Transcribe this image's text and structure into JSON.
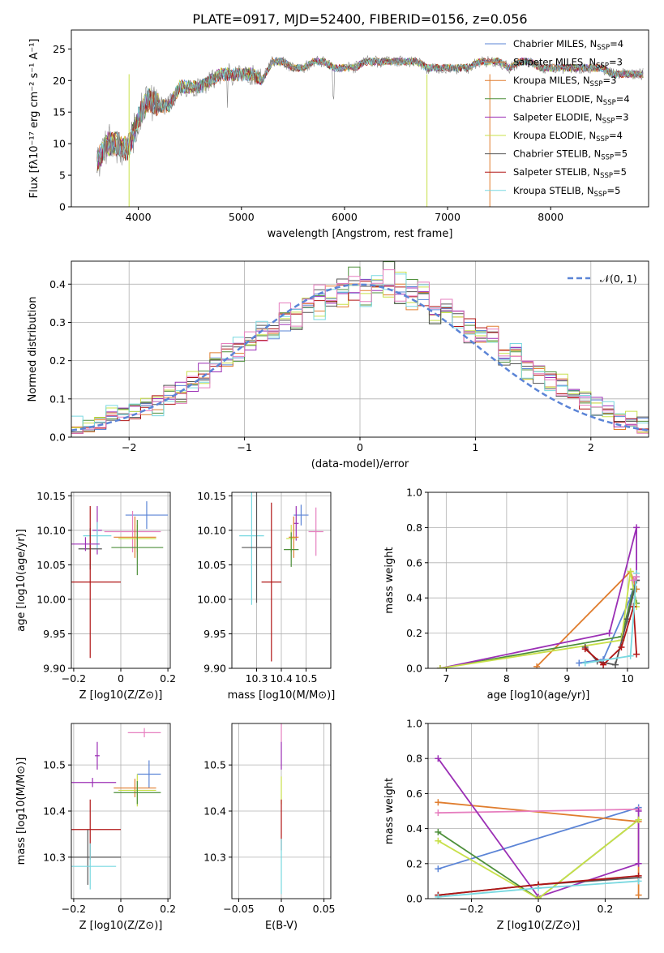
{
  "figure": {
    "title": "PLATE=0917, MJD=52400, FIBERID=0156, z=0.056"
  },
  "colors": {
    "Chabrier MILES": "#5b84d6",
    "Salpeter MILES": "#e07d2e",
    "Kroupa MILES": "#e07d2e",
    "Chabrier ELODIE": "#4d8f3a",
    "Salpeter ELODIE": "#9b2fb5",
    "Kroupa ELODIE": "#c8e04a",
    "Chabrier STELIB": "#555555",
    "Salpeter STELIB": "#b01515",
    "Kroupa STELIB": "#78d8e0",
    "pink": "#e67fbf"
  },
  "chart_data": [
    {
      "type": "line",
      "panel": "spectrum",
      "xlabel": "wavelength [Angstrom, rest frame]",
      "ylabel": "Flux [fλ10⁻¹⁷ erg cm⁻² s⁻¹ A⁻¹]",
      "xlim": [
        3350,
        8950
      ],
      "ylim": [
        0,
        28
      ],
      "xticks": [
        4000,
        5000,
        6000,
        7000,
        8000
      ],
      "yticks": [
        0,
        5,
        10,
        15,
        20,
        25
      ],
      "legend_position": "top-right",
      "x": [
        3600,
        3700,
        3800,
        3900,
        4000,
        4100,
        4200,
        4300,
        4400,
        4500,
        4600,
        4700,
        4800,
        4900,
        5000,
        5100,
        5200,
        5300,
        5400,
        5500,
        5600,
        5700,
        5800,
        5900,
        6000,
        6100,
        6200,
        6300,
        6400,
        6500,
        6600,
        6700,
        6800,
        6900,
        7000,
        7100,
        7200,
        7300,
        7400,
        7500,
        7600,
        7700,
        7800,
        7900,
        8000,
        8100,
        8200,
        8300,
        8400,
        8500,
        8600,
        8700,
        8800,
        8900
      ],
      "series": [
        {
          "name": "Chabrier MILES, N_SSP=4",
          "values": [
            7,
            10,
            10,
            9,
            14,
            17,
            16,
            16,
            19,
            19,
            19,
            20,
            21,
            21,
            21,
            21,
            20,
            23,
            23,
            22,
            22,
            23,
            23,
            22,
            22,
            22,
            23,
            23,
            23,
            23,
            23,
            23,
            22,
            22,
            22,
            22,
            22,
            23,
            23,
            23,
            22,
            23,
            23,
            22,
            22,
            22,
            22,
            22,
            22,
            22,
            21,
            21,
            21,
            21
          ]
        },
        {
          "name": "Salpeter MILES, N_SSP=3"
        },
        {
          "name": "Kroupa MILES, N_SSP=3"
        },
        {
          "name": "Chabrier ELODIE, N_SSP=4"
        },
        {
          "name": "Salpeter ELODIE, N_SSP=3"
        },
        {
          "name": "Kroupa ELODIE, N_SSP=4"
        },
        {
          "name": "Chabrier STELIB, N_SSP=5"
        },
        {
          "name": "Salpeter STELIB, N_SSP=5"
        },
        {
          "name": "Kroupa STELIB, N_SSP=5"
        }
      ]
    },
    {
      "type": "line",
      "panel": "residual-histogram",
      "xlabel": "(data-model)/error",
      "ylabel": "Normed distribution",
      "xlim": [
        -2.5,
        2.5
      ],
      "ylim": [
        0,
        0.46
      ],
      "xticks": [
        -2,
        -1,
        0,
        1,
        2
      ],
      "yticks": [
        0.0,
        0.1,
        0.2,
        0.3,
        0.4
      ],
      "legend": [
        "N(0,1)"
      ],
      "legend_position": "top-right",
      "bin_width": 0.1,
      "bin_start": -2.5,
      "series": [
        {
          "name": "hist1",
          "values": [
            0.02,
            0.03,
            0.04,
            0.05,
            0.06,
            0.06,
            0.07,
            0.09,
            0.1,
            0.12,
            0.14,
            0.17,
            0.19,
            0.21,
            0.23,
            0.25,
            0.27,
            0.28,
            0.3,
            0.32,
            0.34,
            0.35,
            0.37,
            0.38,
            0.38,
            0.39,
            0.4,
            0.39,
            0.38,
            0.37,
            0.36,
            0.34,
            0.33,
            0.31,
            0.29,
            0.27,
            0.25,
            0.23,
            0.21,
            0.19,
            0.17,
            0.15,
            0.13,
            0.11,
            0.09,
            0.08,
            0.06,
            0.05,
            0.04,
            0.03
          ]
        },
        {
          "name": "hist2",
          "values": [
            0.03,
            0.02,
            0.05,
            0.07,
            0.05,
            0.07,
            0.08,
            0.08,
            0.11,
            0.11,
            0.15,
            0.16,
            0.2,
            0.2,
            0.24,
            0.24,
            0.28,
            0.27,
            0.31,
            0.31,
            0.36,
            0.33,
            0.38,
            0.36,
            0.41,
            0.36,
            0.41,
            0.37,
            0.41,
            0.34,
            0.38,
            0.32,
            0.35,
            0.3,
            0.29,
            0.25,
            0.27,
            0.21,
            0.22,
            0.17,
            0.18,
            0.13,
            0.14,
            0.1,
            0.1,
            0.07,
            0.07,
            0.04,
            0.05,
            0.03
          ]
        },
        {
          "name": "hist3",
          "values": [
            0.02,
            0.03,
            0.04,
            0.06,
            0.06,
            0.07,
            0.09,
            0.08,
            0.12,
            0.1,
            0.15,
            0.15,
            0.18,
            0.22,
            0.22,
            0.26,
            0.27,
            0.28,
            0.33,
            0.3,
            0.35,
            0.38,
            0.34,
            0.4,
            0.42,
            0.37,
            0.4,
            0.44,
            0.36,
            0.39,
            0.4,
            0.32,
            0.35,
            0.33,
            0.27,
            0.28,
            0.26,
            0.21,
            0.21,
            0.19,
            0.16,
            0.15,
            0.13,
            0.11,
            0.09,
            0.07,
            0.06,
            0.05,
            0.04,
            0.03
          ]
        }
      ],
      "gaussian": {
        "name": "N(0,1)",
        "mean": 0,
        "sigma": 1
      }
    },
    {
      "type": "scatter",
      "panel": "age-vs-Z",
      "xlabel": "Z [log10(Z/Z⊙)]",
      "ylabel": "age [log10(age/yr)]",
      "xlim": [
        -0.21,
        0.21
      ],
      "ylim": [
        9.9,
        10.155
      ],
      "xticks": [
        -0.2,
        0.0,
        0.2
      ],
      "yticks": [
        9.9,
        9.95,
        10.0,
        10.05,
        10.1,
        10.15
      ],
      "points": [
        {
          "color": "#5b84d6",
          "x": 0.11,
          "y": 10.122,
          "xerr": 0.09,
          "yerr": 0.02
        },
        {
          "color": "#9b2fb5",
          "x": -0.1,
          "y": 10.1,
          "xerr": 0.02,
          "yerr": 0.035
        },
        {
          "color": "#e67fbf",
          "x": 0.05,
          "y": 10.098,
          "xerr": 0.12,
          "yerr": 0.03
        },
        {
          "color": "#e07d2e",
          "x": 0.06,
          "y": 10.09,
          "xerr": 0.09,
          "yerr": 0.03
        },
        {
          "color": "#c8e04a",
          "x": 0.07,
          "y": 10.088,
          "xerr": 0.08,
          "yerr": 0.02
        },
        {
          "color": "#78d8e0",
          "x": -0.1,
          "y": 10.092,
          "xerr": 0.06,
          "yerr": 0.02
        },
        {
          "color": "#4d8f3a",
          "x": 0.07,
          "y": 10.075,
          "xerr": 0.11,
          "yerr": 0.04
        },
        {
          "color": "#555555",
          "x": -0.13,
          "y": 10.073,
          "xerr": 0.05,
          "yerr": 0.03
        },
        {
          "color": "#b01515",
          "x": -0.13,
          "y": 10.025,
          "xerr": 0.13,
          "yerr": 0.11
        },
        {
          "color": "#9b2fb5",
          "x": -0.15,
          "y": 10.08,
          "xerr": 0.06,
          "yerr": 0.01
        }
      ]
    },
    {
      "type": "scatter",
      "panel": "age-vs-mass",
      "xlabel": "mass [log10(M/M⊙)]",
      "ylabel": "",
      "xlim": [
        10.2,
        10.6
      ],
      "ylim": [
        9.9,
        10.155
      ],
      "xticks": [
        10.3,
        10.4,
        10.5
      ],
      "yticks": [
        9.9,
        9.95,
        10.0,
        10.05,
        10.1,
        10.15
      ],
      "points": [
        {
          "color": "#5b84d6",
          "x": 10.48,
          "y": 10.122,
          "xerr": 0.03,
          "yerr": 0.015
        },
        {
          "color": "#9b2fb5",
          "x": 10.46,
          "y": 10.11,
          "xerr": 0.01,
          "yerr": 0.025
        },
        {
          "color": "#e67fbf",
          "x": 10.54,
          "y": 10.098,
          "xerr": 0.03,
          "yerr": 0.035
        },
        {
          "color": "#e07d2e",
          "x": 10.45,
          "y": 10.09,
          "xerr": 0.02,
          "yerr": 0.03
        },
        {
          "color": "#c8e04a",
          "x": 10.44,
          "y": 10.088,
          "xerr": 0.02,
          "yerr": 0.02
        },
        {
          "color": "#78d8e0",
          "x": 10.28,
          "y": 10.092,
          "xerr": 0.05,
          "yerr": 0.1
        },
        {
          "color": "#4d8f3a",
          "x": 10.44,
          "y": 10.072,
          "xerr": 0.03,
          "yerr": 0.025
        },
        {
          "color": "#555555",
          "x": 10.3,
          "y": 10.075,
          "xerr": 0.06,
          "yerr": 0.08
        },
        {
          "color": "#b01515",
          "x": 10.36,
          "y": 10.025,
          "xerr": 0.04,
          "yerr": 0.115
        }
      ]
    },
    {
      "type": "line",
      "panel": "mass-weight-vs-age",
      "xlabel": "age [log10(age/yr)]",
      "ylabel": "mass weight",
      "xlim": [
        6.7,
        10.35
      ],
      "ylim": [
        0,
        1.0
      ],
      "xticks": [
        7,
        8,
        9,
        10
      ],
      "yticks": [
        0.0,
        0.2,
        0.4,
        0.6,
        0.8,
        1.0
      ],
      "series": [
        {
          "color": "#5b84d6",
          "x": [
            9.2,
            9.6,
            10.05,
            10.15
          ],
          "y": [
            0.03,
            0.05,
            0.4,
            0.52
          ]
        },
        {
          "color": "#e07d2e",
          "x": [
            8.5,
            10.05,
            10.15
          ],
          "y": [
            0.01,
            0.55,
            0.45
          ]
        },
        {
          "color": "#4d8f3a",
          "x": [
            6.9,
            9.9,
            10.1,
            10.15
          ],
          "y": [
            0.0,
            0.18,
            0.45,
            0.37
          ]
        },
        {
          "color": "#9b2fb5",
          "x": [
            6.9,
            9.7,
            10.15,
            10.15
          ],
          "y": [
            0.0,
            0.2,
            0.8,
            0.5
          ]
        },
        {
          "color": "#c8e04a",
          "x": [
            6.9,
            9.9,
            10.05,
            10.15
          ],
          "y": [
            0.0,
            0.16,
            0.55,
            0.35
          ]
        },
        {
          "color": "#555555",
          "x": [
            9.3,
            9.5,
            9.8,
            10.0,
            10.15
          ],
          "y": [
            0.12,
            0.04,
            0.02,
            0.28,
            0.5
          ]
        },
        {
          "color": "#b01515",
          "x": [
            9.3,
            9.6,
            9.9,
            10.1,
            10.15
          ],
          "y": [
            0.11,
            0.02,
            0.12,
            0.35,
            0.08
          ]
        },
        {
          "color": "#78d8e0",
          "x": [
            9.3,
            10.05,
            10.15
          ],
          "y": [
            0.03,
            0.07,
            0.54
          ]
        },
        {
          "color": "#e67fbf",
          "x": [
            10.1,
            10.15
          ],
          "y": [
            0.5,
            0.52
          ]
        }
      ]
    },
    {
      "type": "scatter",
      "panel": "mass-vs-Z",
      "xlabel": "Z [log10(Z/Z⊙)]",
      "ylabel": "mass [log10(M/M⊙)]",
      "xlim": [
        -0.21,
        0.21
      ],
      "ylim": [
        10.21,
        10.59
      ],
      "xticks": [
        -0.2,
        0.0,
        0.2
      ],
      "yticks": [
        10.3,
        10.4,
        10.5
      ],
      "points": [
        {
          "color": "#e67fbf",
          "x": 0.1,
          "y": 10.57,
          "xerr": 0.07,
          "yerr": 0.01
        },
        {
          "color": "#9b2fb5",
          "x": -0.1,
          "y": 10.52,
          "xerr": 0.01,
          "yerr": 0.03
        },
        {
          "color": "#5b84d6",
          "x": 0.12,
          "y": 10.48,
          "xerr": 0.05,
          "yerr": 0.03
        },
        {
          "color": "#9b2fb5",
          "x": -0.12,
          "y": 10.462,
          "xerr": 0.1,
          "yerr": 0.01
        },
        {
          "color": "#e07d2e",
          "x": 0.06,
          "y": 10.45,
          "xerr": 0.09,
          "yerr": 0.02
        },
        {
          "color": "#c8e04a",
          "x": 0.07,
          "y": 10.445,
          "xerr": 0.08,
          "yerr": 0.035
        },
        {
          "color": "#4d8f3a",
          "x": 0.07,
          "y": 10.44,
          "xerr": 0.1,
          "yerr": 0.025
        },
        {
          "color": "#b01515",
          "x": -0.13,
          "y": 10.36,
          "xerr": 0.13,
          "yerr": 0.065
        },
        {
          "color": "#555555",
          "x": -0.14,
          "y": 10.3,
          "xerr": 0.14,
          "yerr": 0.06
        },
        {
          "color": "#78d8e0",
          "x": -0.13,
          "y": 10.28,
          "xerr": 0.11,
          "yerr": 0.05
        }
      ]
    },
    {
      "type": "scatter",
      "panel": "mass-vs-EBV",
      "xlabel": "E(B-V)",
      "ylabel": "",
      "xlim": [
        -0.058,
        0.058
      ],
      "ylim": [
        10.21,
        10.59
      ],
      "xticks": [
        -0.05,
        0.0,
        0.05
      ],
      "yticks": [
        10.3,
        10.4,
        10.5
      ],
      "points": [
        {
          "color": "#e67fbf",
          "x": 0.0,
          "y": 10.57,
          "xerr": 0.0,
          "yerr": 0.02
        },
        {
          "color": "#9b2fb5",
          "x": 0.0,
          "y": 10.52,
          "xerr": 0.0,
          "yerr": 0.03
        },
        {
          "color": "#c8e04a",
          "x": 0.0,
          "y": 10.445,
          "xerr": 0.0,
          "yerr": 0.03
        },
        {
          "color": "#b01515",
          "x": 0.0,
          "y": 10.37,
          "xerr": 0.0,
          "yerr": 0.055
        },
        {
          "color": "#78d8e0",
          "x": 0.0,
          "y": 10.28,
          "xerr": 0.0,
          "yerr": 0.06
        }
      ]
    },
    {
      "type": "line",
      "panel": "mass-weight-vs-Z",
      "xlabel": "Z [log10(Z/Z⊙)]",
      "ylabel": "mass weight",
      "xlim": [
        -0.33,
        0.33
      ],
      "ylim": [
        0,
        1.0
      ],
      "xticks": [
        -0.2,
        0.0,
        0.2
      ],
      "yticks": [
        0.0,
        0.2,
        0.4,
        0.6,
        0.8,
        1.0
      ],
      "series": [
        {
          "color": "#5b84d6",
          "x": [
            -0.3,
            0.3
          ],
          "y": [
            0.17,
            0.52
          ]
        },
        {
          "color": "#e07d2e",
          "x": [
            -0.3,
            0.3,
            0.3
          ],
          "y": [
            0.55,
            0.44,
            0.02
          ]
        },
        {
          "color": "#e67fbf",
          "x": [
            -0.3,
            0.3
          ],
          "y": [
            0.49,
            0.51
          ]
        },
        {
          "color": "#9b2fb5",
          "x": [
            -0.3,
            0.0,
            0.3,
            0.3
          ],
          "y": [
            0.8,
            0.01,
            0.2,
            0.5
          ]
        },
        {
          "color": "#4d8f3a",
          "x": [
            -0.3,
            0.0,
            0.3
          ],
          "y": [
            0.38,
            0.0,
            0.45
          ]
        },
        {
          "color": "#c8e04a",
          "x": [
            -0.3,
            0.0,
            0.3
          ],
          "y": [
            0.33,
            0.0,
            0.45
          ]
        },
        {
          "color": "#555555",
          "x": [
            -0.3,
            0.0,
            0.3
          ],
          "y": [
            0.02,
            0.08,
            0.12
          ]
        },
        {
          "color": "#b01515",
          "x": [
            -0.3,
            0.0,
            0.3
          ],
          "y": [
            0.02,
            0.08,
            0.13
          ]
        },
        {
          "color": "#78d8e0",
          "x": [
            -0.3,
            0.0,
            0.3
          ],
          "y": [
            0.01,
            0.06,
            0.1
          ]
        }
      ]
    }
  ]
}
